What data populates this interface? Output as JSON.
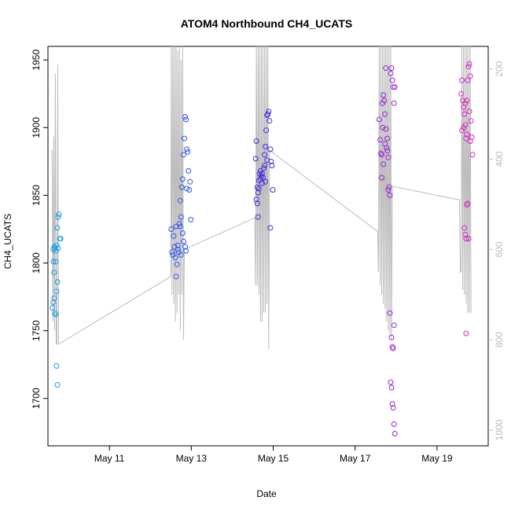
{
  "chart_data": {
    "type": "scatter",
    "title": "ATOM4 Northbound CH4_UCATS",
    "xlabel": "Date",
    "ylabel": "CH4_UCATS",
    "xlim": [
      "2018-05-09T12:00",
      "2018-05-20T06:00"
    ],
    "ylim": [
      1665,
      1960
    ],
    "x_ticks": [
      {
        "label": "May 11",
        "value": "2018-05-11"
      },
      {
        "label": "May 13",
        "value": "2018-05-13"
      },
      {
        "label": "May 15",
        "value": "2018-05-15"
      },
      {
        "label": "May 17",
        "value": "2018-05-17"
      },
      {
        "label": "May 19",
        "value": "2018-05-19"
      }
    ],
    "y_ticks": [
      1700,
      1750,
      1800,
      1850,
      1900,
      1950
    ],
    "y2_axis": {
      "ticks": [
        200,
        400,
        600,
        800,
        1000
      ],
      "range": [
        1035,
        150
      ],
      "color": "#bbbbbb"
    },
    "grid": false,
    "legend": "none",
    "series": [
      {
        "color": "#1a9ee6",
        "points": [
          [
            "2018-05-09T15:07",
            "1810"
          ],
          [
            "2018-05-09T15:36",
            "1812"
          ],
          [
            "2018-05-09T16:04",
            "1811"
          ],
          [
            "2018-05-09T16:33",
            "1809"
          ],
          [
            "2018-05-09T17:02",
            "1813"
          ],
          [
            "2018-05-09T17:31",
            "1826"
          ],
          [
            "2018-05-09T18:00",
            "1834"
          ],
          [
            "2018-05-09T18:28",
            "1836"
          ],
          [
            "2018-05-09T18:57",
            "1818"
          ],
          [
            "2018-05-09T19:26",
            "1818"
          ],
          [
            "2018-05-09T18:00",
            "1811"
          ],
          [
            "2018-05-09T15:07",
            "1801"
          ],
          [
            "2018-05-09T16:33",
            "1801"
          ],
          [
            "2018-05-09T15:36",
            "1793"
          ],
          [
            "2018-05-09T17:31",
            "1786"
          ],
          [
            "2018-05-09T17:02",
            "1779"
          ],
          [
            "2018-05-09T15:36",
            "1774"
          ],
          [
            "2018-05-09T15:07",
            "1771"
          ],
          [
            "2018-05-09T14:38",
            "1767"
          ],
          [
            "2018-05-09T16:04",
            "1763"
          ],
          [
            "2018-05-09T16:33",
            "1762"
          ],
          [
            "2018-05-09T17:02",
            "1724"
          ],
          [
            "2018-05-09T17:31",
            "1710"
          ]
        ]
      },
      {
        "color": "#2e55e8",
        "points": [
          [
            "2018-05-12T12:14",
            "1825"
          ],
          [
            "2018-05-12T12:43",
            "1808"
          ],
          [
            "2018-05-12T13:12",
            "1806"
          ],
          [
            "2018-05-12T13:40",
            "1820"
          ],
          [
            "2018-05-12T14:09",
            "1812"
          ],
          [
            "2018-05-12T14:38",
            "1804"
          ],
          [
            "2018-05-12T15:07",
            "1790"
          ],
          [
            "2018-05-12T15:36",
            "1799"
          ],
          [
            "2018-05-12T16:04",
            "1810"
          ],
          [
            "2018-05-12T16:33",
            "1808"
          ],
          [
            "2018-05-12T17:02",
            "1829"
          ],
          [
            "2018-05-12T17:31",
            "1827"
          ],
          [
            "2018-05-12T18:00",
            "1834"
          ],
          [
            "2018-05-12T18:28",
            "1856"
          ],
          [
            "2018-05-12T18:57",
            "1862"
          ],
          [
            "2018-05-12T19:26",
            "1880"
          ],
          [
            "2018-05-12T19:55",
            "1892"
          ],
          [
            "2018-05-12T20:24",
            "1908"
          ],
          [
            "2018-05-12T20:52",
            "1906"
          ],
          [
            "2018-05-12T21:21",
            "1884"
          ],
          [
            "2018-05-12T21:50",
            "1882"
          ],
          [
            "2018-05-12T22:19",
            "1868"
          ],
          [
            "2018-05-12T22:48",
            "1854"
          ],
          [
            "2018-05-12T23:16",
            "1860"
          ],
          [
            "2018-05-12T23:45",
            "1832"
          ],
          [
            "2018-05-12T20:24",
            "1812"
          ],
          [
            "2018-05-12T20:52",
            "1809"
          ],
          [
            "2018-05-12T19:26",
            "1816"
          ],
          [
            "2018-05-12T18:57",
            "1822"
          ],
          [
            "2018-05-12T18:00",
            "1806"
          ],
          [
            "2018-05-12T17:31",
            "1846"
          ],
          [
            "2018-05-12T21:21",
            "1855"
          ],
          [
            "2018-05-12T16:04",
            "1813"
          ],
          [
            "2018-05-12T15:07",
            "1827"
          ]
        ]
      },
      {
        "color": "#4a26e0",
        "points": [
          [
            "2018-05-14T13:40",
            "1877"
          ],
          [
            "2018-05-14T14:09",
            "1890"
          ],
          [
            "2018-05-14T14:38",
            "1856"
          ],
          [
            "2018-05-14T15:07",
            "1852"
          ],
          [
            "2018-05-14T15:36",
            "1861"
          ],
          [
            "2018-05-14T16:04",
            "1866"
          ],
          [
            "2018-05-14T16:33",
            "1868"
          ],
          [
            "2018-05-14T17:02",
            "1864"
          ],
          [
            "2018-05-14T17:31",
            "1859"
          ],
          [
            "2018-05-14T18:00",
            "1863"
          ],
          [
            "2018-05-14T18:28",
            "1870"
          ],
          [
            "2018-05-14T18:57",
            "1880"
          ],
          [
            "2018-05-14T19:26",
            "1886"
          ],
          [
            "2018-05-14T19:55",
            "1898"
          ],
          [
            "2018-05-14T20:24",
            "1909"
          ],
          [
            "2018-05-14T20:52",
            "1910"
          ],
          [
            "2018-05-14T21:21",
            "1912"
          ],
          [
            "2018-05-14T21:50",
            "1905"
          ],
          [
            "2018-05-14T22:19",
            "1884"
          ],
          [
            "2018-05-14T22:48",
            "1875"
          ],
          [
            "2018-05-14T23:16",
            "1872"
          ],
          [
            "2018-05-14T23:45",
            "1854"
          ],
          [
            "2018-05-14T14:09",
            "1847"
          ],
          [
            "2018-05-14T14:38",
            "1844"
          ],
          [
            "2018-05-14T15:07",
            "1834"
          ],
          [
            "2018-05-14T22:19",
            "1826"
          ],
          [
            "2018-05-14T16:33",
            "1862"
          ],
          [
            "2018-05-14T17:31",
            "1866"
          ],
          [
            "2018-05-14T18:57",
            "1872"
          ],
          [
            "2018-05-14T20:24",
            "1876"
          ],
          [
            "2018-05-14T19:26",
            "1860"
          ],
          [
            "2018-05-14T15:36",
            "1855"
          ]
        ]
      },
      {
        "color": "#9a24d8",
        "points": [
          [
            "2018-05-17T14:09",
            "1906"
          ],
          [
            "2018-05-17T14:38",
            "1891"
          ],
          [
            "2018-05-17T15:07",
            "1881"
          ],
          [
            "2018-05-17T15:36",
            "1863"
          ],
          [
            "2018-05-17T16:04",
            "1918"
          ],
          [
            "2018-05-17T16:33",
            "1924"
          ],
          [
            "2018-05-17T17:02",
            "1920"
          ],
          [
            "2018-05-17T17:31",
            "1910"
          ],
          [
            "2018-05-17T18:00",
            "1899"
          ],
          [
            "2018-05-17T18:28",
            "1885"
          ],
          [
            "2018-05-17T18:57",
            "1883"
          ],
          [
            "2018-05-17T19:26",
            "1878"
          ],
          [
            "2018-05-17T19:55",
            "1856"
          ],
          [
            "2018-05-17T20:24",
            "1850"
          ],
          [
            "2018-05-17T20:52",
            "1940"
          ],
          [
            "2018-05-17T21:21",
            "1944"
          ],
          [
            "2018-05-17T21:50",
            "1935"
          ],
          [
            "2018-05-17T22:19",
            "1930"
          ],
          [
            "2018-05-17T22:48",
            "1918"
          ],
          [
            "2018-05-17T23:16",
            "1930"
          ],
          [
            "2018-05-17T15:36",
            "1880"
          ],
          [
            "2018-05-17T16:33",
            "1873"
          ],
          [
            "2018-05-17T17:31",
            "1888"
          ],
          [
            "2018-05-17T18:57",
            "1892"
          ],
          [
            "2018-05-17T19:26",
            "1854"
          ],
          [
            "2018-05-17T20:24",
            "1763"
          ],
          [
            "2018-05-17T21:21",
            "1745"
          ],
          [
            "2018-05-17T21:50",
            "1738"
          ],
          [
            "2018-05-17T22:19",
            "1737"
          ],
          [
            "2018-05-17T22:48",
            "1754"
          ],
          [
            "2018-05-17T20:52",
            "1712"
          ],
          [
            "2018-05-17T21:21",
            "1708"
          ],
          [
            "2018-05-17T21:50",
            "1696"
          ],
          [
            "2018-05-17T22:19",
            "1693"
          ],
          [
            "2018-05-17T22:48",
            "1681"
          ],
          [
            "2018-05-17T23:16",
            "1674"
          ],
          [
            "2018-05-17T18:00",
            "1944"
          ],
          [
            "2018-05-17T16:04",
            "1900"
          ]
        ]
      },
      {
        "color": "#d826c9",
        "points": [
          [
            "2018-05-19T14:09",
            "1925"
          ],
          [
            "2018-05-19T14:38",
            "1935"
          ],
          [
            "2018-05-19T15:07",
            "1920"
          ],
          [
            "2018-05-19T15:36",
            "1915"
          ],
          [
            "2018-05-19T16:04",
            "1910"
          ],
          [
            "2018-05-19T16:33",
            "1902"
          ],
          [
            "2018-05-19T17:02",
            "1892"
          ],
          [
            "2018-05-19T17:31",
            "1895"
          ],
          [
            "2018-05-19T18:00",
            "1935"
          ],
          [
            "2018-05-19T18:28",
            "1945"
          ],
          [
            "2018-05-19T18:57",
            "1947"
          ],
          [
            "2018-05-19T19:26",
            "1938"
          ],
          [
            "2018-05-19T19:55",
            "1905"
          ],
          [
            "2018-05-19T20:24",
            "1893"
          ],
          [
            "2018-05-19T20:52",
            "1880"
          ],
          [
            "2018-05-19T14:38",
            "1898"
          ],
          [
            "2018-05-19T15:36",
            "1900"
          ],
          [
            "2018-05-19T16:33",
            "1918"
          ],
          [
            "2018-05-19T17:31",
            "1920"
          ],
          [
            "2018-05-19T18:57",
            "1912"
          ],
          [
            "2018-05-19T16:04",
            "1826"
          ],
          [
            "2018-05-19T16:33",
            "1821"
          ],
          [
            "2018-05-19T17:02",
            "1818"
          ],
          [
            "2018-05-19T17:31",
            "1843"
          ],
          [
            "2018-05-19T18:00",
            "1844"
          ],
          [
            "2018-05-19T18:28",
            "1818"
          ],
          [
            "2018-05-19T17:02",
            "1748"
          ],
          [
            "2018-05-19T19:26",
            "1890"
          ]
        ]
      }
    ],
    "pressure_trace": {
      "color": "#bbbbbb",
      "points": [
        [
          "2018-05-09T14:24",
          380
        ],
        [
          "2018-05-09T14:52",
          760
        ],
        [
          "2018-05-09T15:21",
          350
        ],
        [
          "2018-05-09T15:50",
          780
        ],
        [
          "2018-05-09T16:19",
          210
        ],
        [
          "2018-05-09T16:48",
          810
        ],
        [
          "2018-05-09T17:16",
          810
        ],
        [
          "2018-05-09T17:45",
          190
        ],
        [
          "2018-05-09T18:14",
          810
        ],
        [
          "2018-05-12T12:00",
          660
        ],
        [
          "2018-05-12T12:14",
          150
        ],
        [
          "2018-05-12T12:43",
          700
        ],
        [
          "2018-05-12T13:12",
          150
        ],
        [
          "2018-05-12T13:40",
          720
        ],
        [
          "2018-05-12T14:09",
          150
        ],
        [
          "2018-05-12T14:38",
          760
        ],
        [
          "2018-05-12T15:07",
          150
        ],
        [
          "2018-05-12T15:36",
          740
        ],
        [
          "2018-05-12T16:04",
          160
        ],
        [
          "2018-05-12T16:33",
          700
        ],
        [
          "2018-05-12T17:02",
          150
        ],
        [
          "2018-05-12T17:31",
          780
        ],
        [
          "2018-05-12T18:00",
          180
        ],
        [
          "2018-05-12T18:28",
          700
        ],
        [
          "2018-05-12T18:57",
          150
        ],
        [
          "2018-05-12T19:26",
          800
        ],
        [
          "2018-05-12T19:55",
          600
        ],
        [
          "2018-05-14T13:12",
          530
        ],
        [
          "2018-05-14T13:40",
          680
        ],
        [
          "2018-05-14T14:09",
          150
        ],
        [
          "2018-05-14T14:38",
          680
        ],
        [
          "2018-05-14T15:07",
          150
        ],
        [
          "2018-05-14T15:36",
          700
        ],
        [
          "2018-05-14T16:04",
          150
        ],
        [
          "2018-05-14T16:33",
          760
        ],
        [
          "2018-05-14T17:02",
          150
        ],
        [
          "2018-05-14T17:31",
          760
        ],
        [
          "2018-05-14T18:00",
          150
        ],
        [
          "2018-05-14T18:28",
          740
        ],
        [
          "2018-05-14T18:57",
          150
        ],
        [
          "2018-05-14T19:26",
          740
        ],
        [
          "2018-05-14T19:55",
          150
        ],
        [
          "2018-05-14T20:24",
          720
        ],
        [
          "2018-05-14T20:52",
          150
        ],
        [
          "2018-05-14T21:21",
          820
        ],
        [
          "2018-05-14T21:50",
          380
        ],
        [
          "2018-05-17T13:12",
          560
        ],
        [
          "2018-05-17T13:40",
          650
        ],
        [
          "2018-05-17T14:09",
          150
        ],
        [
          "2018-05-17T14:38",
          680
        ],
        [
          "2018-05-17T15:07",
          150
        ],
        [
          "2018-05-17T15:36",
          700
        ],
        [
          "2018-05-17T16:04",
          150
        ],
        [
          "2018-05-17T16:33",
          720
        ],
        [
          "2018-05-17T17:02",
          150
        ],
        [
          "2018-05-17T17:31",
          730
        ],
        [
          "2018-05-17T18:00",
          150
        ],
        [
          "2018-05-17T18:28",
          760
        ],
        [
          "2018-05-17T18:57",
          150
        ],
        [
          "2018-05-17T19:26",
          780
        ],
        [
          "2018-05-17T19:55",
          150
        ],
        [
          "2018-05-17T20:24",
          790
        ],
        [
          "2018-05-17T20:52",
          150
        ],
        [
          "2018-05-17T21:21",
          800
        ],
        [
          "2018-05-17T21:50",
          460
        ],
        [
          "2018-05-19T13:12",
          490
        ],
        [
          "2018-05-19T13:40",
          650
        ],
        [
          "2018-05-19T14:09",
          650
        ],
        [
          "2018-05-19T14:38",
          150
        ],
        [
          "2018-05-19T15:07",
          690
        ],
        [
          "2018-05-19T15:36",
          150
        ],
        [
          "2018-05-19T16:04",
          700
        ],
        [
          "2018-05-19T16:33",
          150
        ],
        [
          "2018-05-19T17:02",
          720
        ],
        [
          "2018-05-19T17:31",
          150
        ],
        [
          "2018-05-19T18:00",
          740
        ],
        [
          "2018-05-19T18:28",
          150
        ],
        [
          "2018-05-19T18:57",
          740
        ],
        [
          "2018-05-19T19:26",
          150
        ],
        [
          "2018-05-19T19:55",
          740
        ]
      ]
    }
  }
}
